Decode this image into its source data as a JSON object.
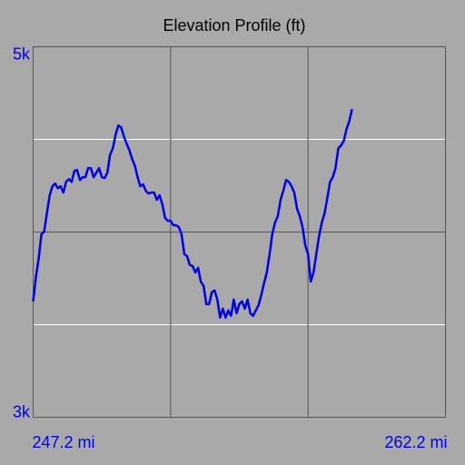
{
  "chart_data": {
    "type": "line",
    "title": "Elevation Profile (ft)",
    "xlim": [
      247.2,
      262.2
    ],
    "ylim": [
      3000,
      5000
    ],
    "xticks": [
      {
        "value": 247.2,
        "label": "247.2 mi"
      },
      {
        "value": 262.2,
        "label": "262.2 mi"
      }
    ],
    "yticks": [
      {
        "value": 5000,
        "label": "5k"
      },
      {
        "value": 3000,
        "label": "3k"
      }
    ],
    "ygrid": [
      {
        "value": 3500,
        "color": "#ffffff"
      },
      {
        "value": 4000,
        "color": "#555555"
      },
      {
        "value": 4500,
        "color": "#ffffff"
      }
    ],
    "xgrid": [
      {
        "value": 252.2,
        "color": "#555555"
      },
      {
        "value": 257.2,
        "color": "#555555"
      }
    ],
    "series": [
      {
        "color": "#0000ee",
        "x": [
          247.2,
          247.3,
          247.4,
          247.5,
          247.6,
          247.7,
          247.8,
          247.9,
          248.0,
          248.1,
          248.2,
          248.3,
          248.4,
          248.5,
          248.6,
          248.7,
          248.8,
          248.9,
          249.0,
          249.1,
          249.2,
          249.3,
          249.4,
          249.5,
          249.6,
          249.7,
          249.8,
          249.9,
          250.0,
          250.1,
          250.2,
          250.3,
          250.4,
          250.5,
          250.6,
          250.7,
          250.8,
          250.9,
          251.0,
          251.1,
          251.2,
          251.3,
          251.4,
          251.5,
          251.6,
          251.7,
          251.8,
          251.9,
          252.0,
          252.1,
          252.2,
          252.3,
          252.4,
          252.5,
          252.6,
          252.7,
          252.8,
          252.9,
          253.0,
          253.1,
          253.2,
          253.3,
          253.4,
          253.5,
          253.6,
          253.7,
          253.8,
          253.9,
          254.0,
          254.1,
          254.2,
          254.3,
          254.4,
          254.5,
          254.6,
          254.7,
          254.8,
          254.9,
          255.0,
          255.1,
          255.2,
          255.3,
          255.4,
          255.5,
          255.6,
          255.7,
          255.8,
          255.9,
          256.0,
          256.1,
          256.2,
          256.3,
          256.4,
          256.5,
          256.6,
          256.7,
          256.8,
          256.9,
          257.0,
          257.1,
          257.2,
          257.3,
          257.4,
          257.5,
          257.6,
          257.7,
          257.8,
          257.9,
          258.0,
          258.1,
          258.2,
          258.3,
          258.4,
          258.5,
          258.6,
          258.7,
          258.8
        ],
        "values": [
          3626,
          3758,
          3856,
          3988,
          4002,
          4100,
          4198,
          4247,
          4262,
          4237,
          4247,
          4213,
          4271,
          4286,
          4271,
          4330,
          4335,
          4281,
          4296,
          4296,
          4345,
          4345,
          4296,
          4320,
          4345,
          4296,
          4291,
          4320,
          4418,
          4452,
          4526,
          4575,
          4565,
          4516,
          4477,
          4443,
          4394,
          4359,
          4296,
          4247,
          4257,
          4222,
          4208,
          4213,
          4213,
          4174,
          4198,
          4149,
          4076,
          4061,
          4061,
          4037,
          4037,
          4027,
          3988,
          3880,
          3870,
          3822,
          3817,
          3782,
          3807,
          3733,
          3709,
          3611,
          3611,
          3675,
          3685,
          3636,
          3538,
          3587,
          3538,
          3577,
          3548,
          3636,
          3562,
          3611,
          3626,
          3587,
          3636,
          3562,
          3548,
          3577,
          3606,
          3660,
          3724,
          3782,
          3880,
          3988,
          4051,
          4086,
          4174,
          4222,
          4281,
          4271,
          4247,
          4213,
          4125,
          4086,
          4027,
          3929,
          3880,
          3733,
          3782,
          3880,
          3978,
          4051,
          4100,
          4183,
          4271,
          4296,
          4345,
          4452,
          4467,
          4491,
          4555,
          4599,
          4663
        ]
      }
    ]
  }
}
